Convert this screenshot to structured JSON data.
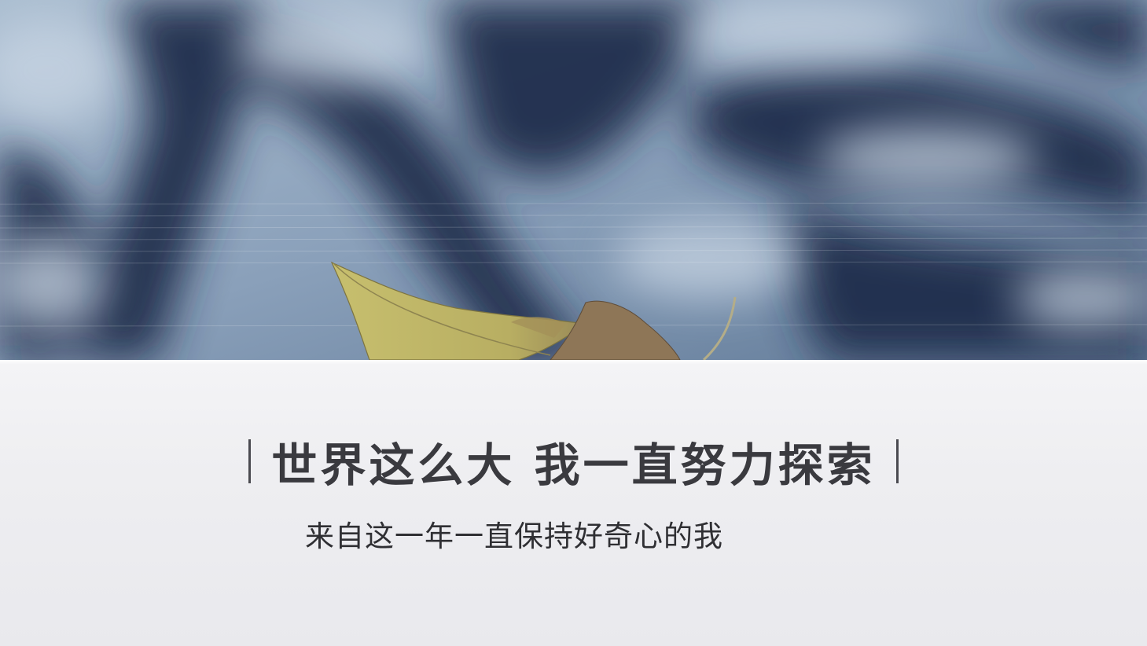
{
  "photo": {
    "description_icon": "leaf-photo",
    "colors": {
      "sky_light": "#a9bdd0",
      "shadow_dark": "#1c2a44",
      "leaf": "#c0b663",
      "leaf_dry": "#8a6f4f"
    }
  },
  "headline": {
    "text": "世界这么大 我一直努力探索"
  },
  "subline": {
    "text": "来自这一年一直保持好奇心的我"
  }
}
